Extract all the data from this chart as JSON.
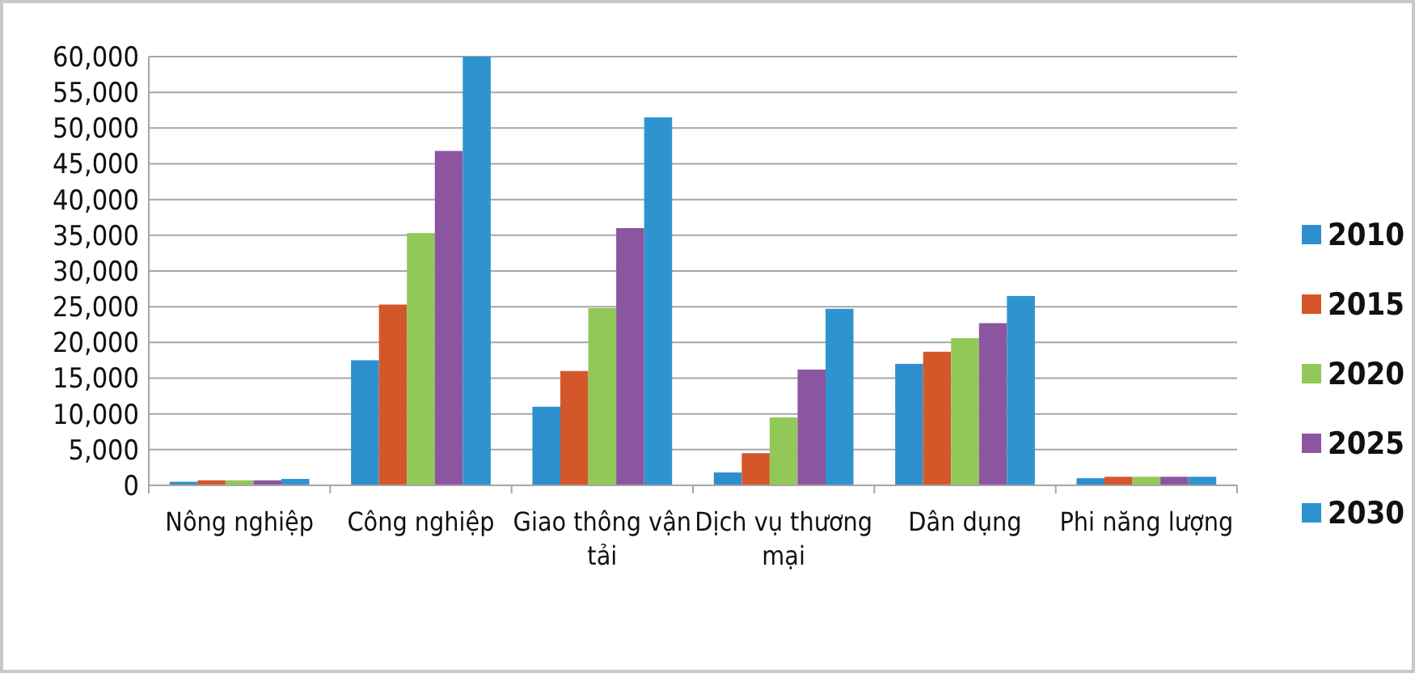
{
  "chart_data": {
    "type": "bar",
    "categories": [
      "Nông nghiệp",
      "Công nghiệp",
      "Giao thông vận tải",
      "Dịch vụ thương mại",
      "Dân dụng",
      "Phi năng lượng"
    ],
    "series": [
      {
        "name": "2010",
        "color": "#2e8fcf",
        "values": [
          500,
          17500,
          11000,
          1800,
          17000,
          1000
        ]
      },
      {
        "name": "2015",
        "color": "#d4572a",
        "values": [
          700,
          25300,
          16000,
          4500,
          18700,
          1200
        ]
      },
      {
        "name": "2020",
        "color": "#92c857",
        "values": [
          700,
          35300,
          24800,
          9500,
          20600,
          1200
        ]
      },
      {
        "name": "2025",
        "color": "#8c55a0",
        "values": [
          700,
          46800,
          36000,
          16200,
          22700,
          1200
        ]
      },
      {
        "name": "2030",
        "color": "#2e94d0",
        "values": [
          900,
          60000,
          51500,
          24700,
          26500,
          1200
        ]
      }
    ],
    "ylim": [
      0,
      60000
    ],
    "yticks": [
      {
        "value": 0,
        "label": "0"
      },
      {
        "value": 5000,
        "label": "5,000"
      },
      {
        "value": 10000,
        "label": "10,000"
      },
      {
        "value": 15000,
        "label": "15,000"
      },
      {
        "value": 20000,
        "label": "20,000"
      },
      {
        "value": 25000,
        "label": "25,000"
      },
      {
        "value": 30000,
        "label": "30,000"
      },
      {
        "value": 35000,
        "label": "35,000"
      },
      {
        "value": 40000,
        "label": "40,000"
      },
      {
        "value": 45000,
        "label": "45,000"
      },
      {
        "value": 50000,
        "label": "50,000"
      },
      {
        "value": 55000,
        "label": "55,000"
      },
      {
        "value": 60000,
        "label": "60,000"
      }
    ],
    "grid": "y",
    "legend": "right"
  }
}
